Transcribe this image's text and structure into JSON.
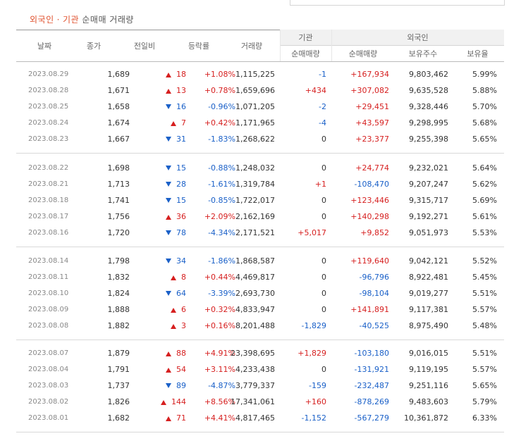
{
  "title": {
    "part1": "외국인",
    "separator": "·",
    "part2": "기관",
    "part3": "순매매 거래량"
  },
  "headers": {
    "date": "날짜",
    "close": "종가",
    "change": "전일비",
    "rate": "등락률",
    "volume": "거래량",
    "institution": "기관",
    "foreign": "외국인",
    "inst_net": "순매매량",
    "foreign_net": "순매매량",
    "foreign_hold": "보유주수",
    "foreign_ratio": "보유율"
  },
  "colors": {
    "up": "#d61f1f",
    "down": "#1a60c8",
    "title_accent": "#e0522f"
  },
  "groups": [
    [
      {
        "date": "2023.08.29",
        "close": "1,689",
        "dir": "up",
        "change": "18",
        "rate": "+1.08%",
        "volume": "1,115,225",
        "inst": "-1",
        "fnet": "+167,934",
        "fhold": "9,803,462",
        "frate": "5.99%"
      },
      {
        "date": "2023.08.28",
        "close": "1,671",
        "dir": "up",
        "change": "13",
        "rate": "+0.78%",
        "volume": "1,659,696",
        "inst": "+434",
        "fnet": "+307,082",
        "fhold": "9,635,528",
        "frate": "5.88%"
      },
      {
        "date": "2023.08.25",
        "close": "1,658",
        "dir": "down",
        "change": "16",
        "rate": "-0.96%",
        "volume": "1,071,205",
        "inst": "-2",
        "fnet": "+29,451",
        "fhold": "9,328,446",
        "frate": "5.70%"
      },
      {
        "date": "2023.08.24",
        "close": "1,674",
        "dir": "up",
        "change": "7",
        "rate": "+0.42%",
        "volume": "1,171,965",
        "inst": "-4",
        "fnet": "+43,597",
        "fhold": "9,298,995",
        "frate": "5.68%"
      },
      {
        "date": "2023.08.23",
        "close": "1,667",
        "dir": "down",
        "change": "31",
        "rate": "-1.83%",
        "volume": "1,268,622",
        "inst": "0",
        "fnet": "+23,377",
        "fhold": "9,255,398",
        "frate": "5.65%"
      }
    ],
    [
      {
        "date": "2023.08.22",
        "close": "1,698",
        "dir": "down",
        "change": "15",
        "rate": "-0.88%",
        "volume": "1,248,032",
        "inst": "0",
        "fnet": "+24,774",
        "fhold": "9,232,021",
        "frate": "5.64%"
      },
      {
        "date": "2023.08.21",
        "close": "1,713",
        "dir": "down",
        "change": "28",
        "rate": "-1.61%",
        "volume": "1,319,784",
        "inst": "+1",
        "fnet": "-108,470",
        "fhold": "9,207,247",
        "frate": "5.62%"
      },
      {
        "date": "2023.08.18",
        "close": "1,741",
        "dir": "down",
        "change": "15",
        "rate": "-0.85%",
        "volume": "1,722,017",
        "inst": "0",
        "fnet": "+123,446",
        "fhold": "9,315,717",
        "frate": "5.69%"
      },
      {
        "date": "2023.08.17",
        "close": "1,756",
        "dir": "up",
        "change": "36",
        "rate": "+2.09%",
        "volume": "2,162,169",
        "inst": "0",
        "fnet": "+140,298",
        "fhold": "9,192,271",
        "frate": "5.61%"
      },
      {
        "date": "2023.08.16",
        "close": "1,720",
        "dir": "down",
        "change": "78",
        "rate": "-4.34%",
        "volume": "2,171,521",
        "inst": "+5,017",
        "fnet": "+9,852",
        "fhold": "9,051,973",
        "frate": "5.53%"
      }
    ],
    [
      {
        "date": "2023.08.14",
        "close": "1,798",
        "dir": "down",
        "change": "34",
        "rate": "-1.86%",
        "volume": "1,868,587",
        "inst": "0",
        "fnet": "+119,640",
        "fhold": "9,042,121",
        "frate": "5.52%"
      },
      {
        "date": "2023.08.11",
        "close": "1,832",
        "dir": "up",
        "change": "8",
        "rate": "+0.44%",
        "volume": "4,469,817",
        "inst": "0",
        "fnet": "-96,796",
        "fhold": "8,922,481",
        "frate": "5.45%"
      },
      {
        "date": "2023.08.10",
        "close": "1,824",
        "dir": "down",
        "change": "64",
        "rate": "-3.39%",
        "volume": "2,693,730",
        "inst": "0",
        "fnet": "-98,104",
        "fhold": "9,019,277",
        "frate": "5.51%"
      },
      {
        "date": "2023.08.09",
        "close": "1,888",
        "dir": "up",
        "change": "6",
        "rate": "+0.32%",
        "volume": "4,833,947",
        "inst": "0",
        "fnet": "+141,891",
        "fhold": "9,117,381",
        "frate": "5.57%"
      },
      {
        "date": "2023.08.08",
        "close": "1,882",
        "dir": "up",
        "change": "3",
        "rate": "+0.16%",
        "volume": "8,201,488",
        "inst": "-1,829",
        "fnet": "-40,525",
        "fhold": "8,975,490",
        "frate": "5.48%"
      }
    ],
    [
      {
        "date": "2023.08.07",
        "close": "1,879",
        "dir": "up",
        "change": "88",
        "rate": "+4.91%",
        "volume": "23,398,695",
        "inst": "+1,829",
        "fnet": "-103,180",
        "fhold": "9,016,015",
        "frate": "5.51%"
      },
      {
        "date": "2023.08.04",
        "close": "1,791",
        "dir": "up",
        "change": "54",
        "rate": "+3.11%",
        "volume": "4,233,438",
        "inst": "0",
        "fnet": "-131,921",
        "fhold": "9,119,195",
        "frate": "5.57%"
      },
      {
        "date": "2023.08.03",
        "close": "1,737",
        "dir": "down",
        "change": "89",
        "rate": "-4.87%",
        "volume": "3,779,337",
        "inst": "-159",
        "fnet": "-232,487",
        "fhold": "9,251,116",
        "frate": "5.65%"
      },
      {
        "date": "2023.08.02",
        "close": "1,826",
        "dir": "up",
        "change": "144",
        "rate": "+8.56%",
        "volume": "17,341,061",
        "inst": "+160",
        "fnet": "-878,269",
        "fhold": "9,483,603",
        "frate": "5.79%"
      },
      {
        "date": "2023.08.01",
        "close": "1,682",
        "dir": "up",
        "change": "71",
        "rate": "+4.41%",
        "volume": "4,817,465",
        "inst": "-1,152",
        "fnet": "-567,279",
        "fhold": "10,361,872",
        "frate": "6.33%"
      }
    ]
  ]
}
